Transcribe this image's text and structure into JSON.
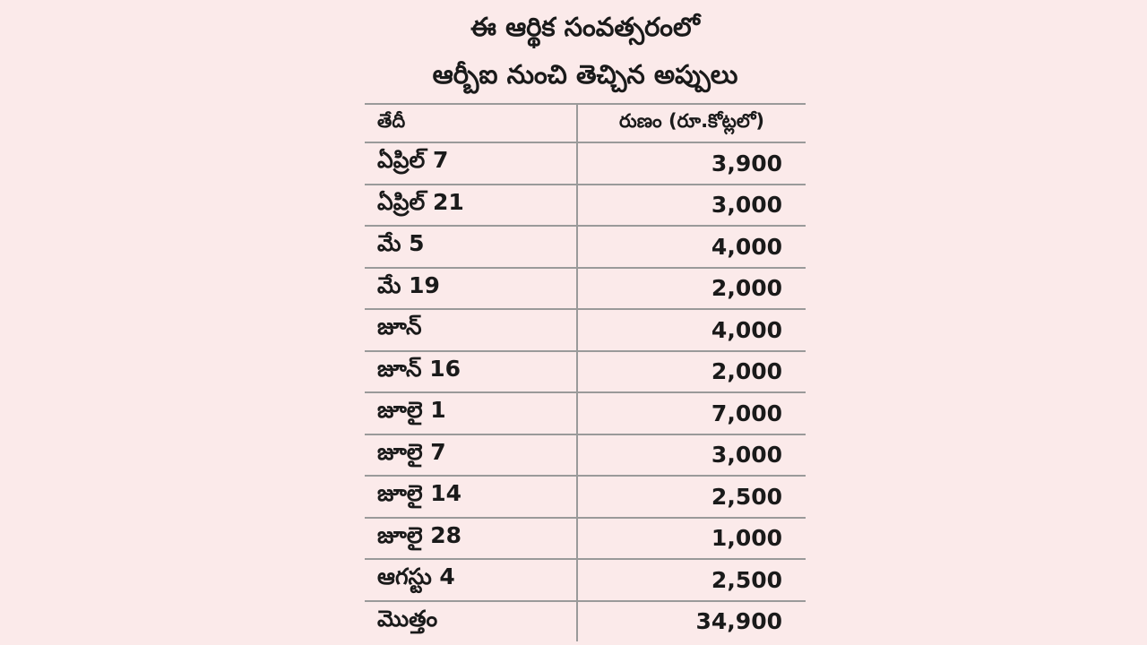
{
  "title": {
    "line1": "ఈ ఆర్థిక సంవత్సరంలో",
    "line2": "ఆర్బీఐ నుంచి తెచ్చిన అప్పులు"
  },
  "table": {
    "header": [
      "తేదీ",
      "రుణం (రూ.కోట్లలో)"
    ],
    "rows": [
      [
        "ఏప్రిల్ 7",
        "3,900"
      ],
      [
        "ఏప్రిల్ 21",
        "3,000"
      ],
      [
        "మే 5",
        "4,000"
      ],
      [
        "మే 19",
        "2,000"
      ],
      [
        "జూన్",
        "4,000"
      ],
      [
        "జూన్ 16",
        "2,000"
      ],
      [
        "జూలై 1",
        "7,000"
      ],
      [
        "జూలై 7",
        "3,000"
      ],
      [
        "జూలై 14",
        "2,500"
      ],
      [
        "జూలై 28",
        "1,000"
      ],
      [
        "ఆగస్టు 4",
        "2,500"
      ],
      [
        "మొత్తం",
        "34,900"
      ]
    ]
  }
}
